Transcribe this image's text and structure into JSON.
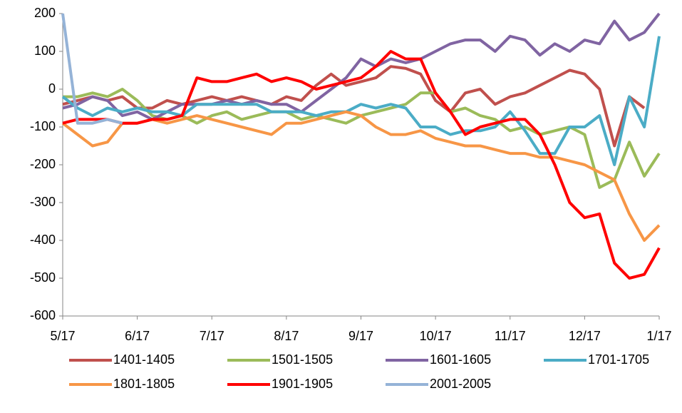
{
  "chart_data": {
    "type": "line",
    "xlim": [
      0,
      8
    ],
    "xticks": [
      {
        "value": 0,
        "label": "5/17"
      },
      {
        "value": 1,
        "label": "6/17"
      },
      {
        "value": 2,
        "label": "7/17"
      },
      {
        "value": 3,
        "label": "8/17"
      },
      {
        "value": 4,
        "label": "9/17"
      },
      {
        "value": 5,
        "label": "10/17"
      },
      {
        "value": 6,
        "label": "11/17"
      },
      {
        "value": 7,
        "label": "12/17"
      },
      {
        "value": 8,
        "label": "1/17"
      }
    ],
    "ylim": [
      -600,
      200
    ],
    "yticks": [
      -600,
      -500,
      -400,
      -300,
      -200,
      -100,
      0,
      100,
      200
    ],
    "x": [
      0,
      0.2,
      0.4,
      0.6,
      0.8,
      1,
      1.2,
      1.4,
      1.6,
      1.8,
      2,
      2.2,
      2.4,
      2.6,
      2.8,
      3,
      3.2,
      3.4,
      3.6,
      3.8,
      4,
      4.2,
      4.4,
      4.6,
      4.8,
      5,
      5.2,
      5.4,
      5.6,
      5.8,
      6,
      6.2,
      6.4,
      6.6,
      6.8,
      7,
      7.2,
      7.4,
      7.6,
      7.8,
      8
    ],
    "series": [
      {
        "name": "1401-1405",
        "color": "#c0504d",
        "values": [
          -40,
          -30,
          -20,
          -30,
          -20,
          -50,
          -50,
          -30,
          -40,
          -30,
          -20,
          -30,
          -20,
          -30,
          -40,
          -20,
          -30,
          10,
          40,
          10,
          20,
          30,
          60,
          55,
          40,
          -30,
          -60,
          -10,
          0,
          -40,
          -20,
          -10,
          10,
          30,
          50,
          40,
          0,
          -150,
          -20,
          -50,
          null
        ]
      },
      {
        "name": "1501-1505",
        "color": "#9bbb59",
        "values": [
          -20,
          -20,
          -10,
          -20,
          0,
          -30,
          -70,
          -80,
          -70,
          -90,
          -70,
          -60,
          -80,
          -70,
          -60,
          -60,
          -80,
          -70,
          -80,
          -90,
          -70,
          -60,
          -50,
          -40,
          -10,
          -10,
          -60,
          -50,
          -70,
          -80,
          -110,
          -100,
          -120,
          -110,
          -100,
          -120,
          -260,
          -240,
          -140,
          -230,
          -170
        ]
      },
      {
        "name": "1601-1605",
        "color": "#8064a2",
        "values": [
          -50,
          -40,
          -20,
          -30,
          -70,
          -60,
          -80,
          -60,
          -40,
          -40,
          -40,
          -30,
          -40,
          -30,
          -40,
          -40,
          -60,
          -30,
          0,
          30,
          80,
          60,
          80,
          70,
          80,
          100,
          120,
          130,
          130,
          100,
          140,
          130,
          90,
          120,
          100,
          130,
          120,
          180,
          130,
          150,
          200
        ]
      },
      {
        "name": "1701-1705",
        "color": "#4bacc6",
        "values": [
          -20,
          -50,
          -70,
          -50,
          -60,
          -50,
          -60,
          -60,
          -70,
          -40,
          -40,
          -40,
          -40,
          -40,
          -60,
          -60,
          -60,
          -70,
          -60,
          -60,
          -40,
          -50,
          -40,
          -50,
          -100,
          -100,
          -120,
          -110,
          -110,
          -100,
          -60,
          -110,
          -170,
          -170,
          -100,
          -100,
          -70,
          -200,
          -20,
          -100,
          140
        ]
      },
      {
        "name": "1801-1805",
        "color": "#f79646",
        "values": [
          -90,
          -120,
          -150,
          -140,
          -90,
          -90,
          -80,
          -90,
          -80,
          -70,
          -80,
          -90,
          -100,
          -110,
          -120,
          -90,
          -90,
          -80,
          -70,
          -60,
          -70,
          -100,
          -120,
          -120,
          -110,
          -130,
          -140,
          -150,
          -150,
          -160,
          -170,
          -170,
          -180,
          -180,
          -190,
          -200,
          -220,
          -240,
          -330,
          -400,
          -360
        ]
      },
      {
        "name": "1901-1905",
        "color": "#ff0000",
        "values": [
          -90,
          -80,
          -80,
          -80,
          -90,
          -90,
          -80,
          -80,
          -70,
          30,
          20,
          20,
          30,
          40,
          20,
          30,
          20,
          0,
          10,
          20,
          30,
          60,
          100,
          80,
          80,
          -10,
          -60,
          -120,
          -100,
          -90,
          -80,
          -80,
          -120,
          -200,
          -300,
          -340,
          -330,
          -460,
          -500,
          -490,
          -420
        ]
      },
      {
        "name": "2001-2005",
        "color": "#95b3d7",
        "values": [
          200,
          -90,
          -90,
          -80,
          -90,
          null,
          null,
          null,
          null,
          null,
          null,
          null,
          null,
          null,
          null,
          null,
          null,
          null,
          null,
          null,
          null,
          null,
          null,
          null,
          null,
          null,
          null,
          null,
          null,
          null,
          null,
          null,
          null,
          null,
          null,
          null,
          null,
          null,
          null,
          null,
          null
        ]
      }
    ]
  }
}
